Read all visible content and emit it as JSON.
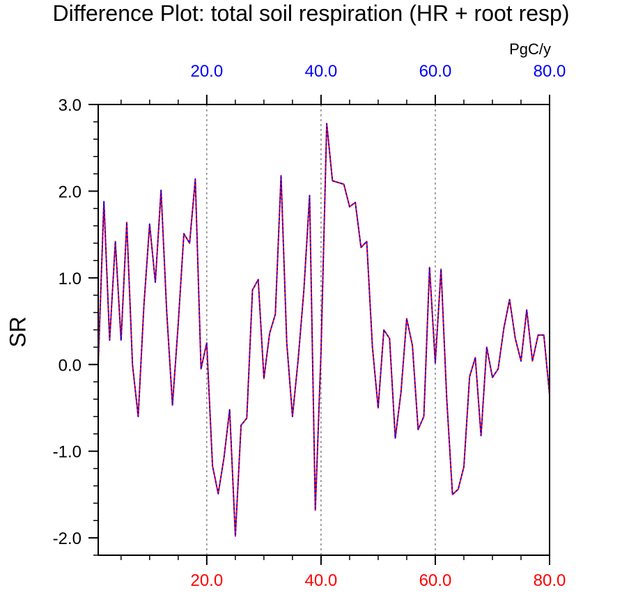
{
  "chart_data": {
    "type": "line",
    "title": "Difference Plot: total soil respiration (HR + root resp)",
    "ylabel": "SR",
    "top_axis_unit": "PgC/y",
    "xlim": [
      1,
      80
    ],
    "ylim": [
      -2.2,
      3.0
    ],
    "x_ticks": [
      "20.0",
      "40.0",
      "60.0",
      "80.0"
    ],
    "y_ticks": [
      "3.0",
      "2.0",
      "1.0",
      "0.0",
      "-1.0",
      "-2.0"
    ],
    "grid": "vertical dashed at 20, 40, 60",
    "colors": {
      "bottom_axis": "#ff0000",
      "top_axis": "#0000ff",
      "series_a": "#ff0000",
      "series_b": "#0000ff",
      "grid": "#666666"
    },
    "series": [
      {
        "style": "solid",
        "color": "#ff0000",
        "x": [
          1,
          2,
          3,
          4,
          5,
          6,
          7,
          8,
          9,
          10,
          11,
          12,
          13,
          14,
          15,
          16,
          17,
          18,
          19,
          20,
          21,
          22,
          23,
          24,
          25,
          26,
          27,
          28,
          29,
          30,
          31,
          32,
          33,
          34,
          35,
          36,
          37,
          38,
          39,
          40,
          41,
          42,
          43,
          44,
          45,
          46,
          47,
          48,
          49,
          50,
          51,
          52,
          53,
          54,
          55,
          56,
          57,
          58,
          59,
          60,
          61,
          62,
          63,
          64,
          65,
          66,
          67,
          68,
          69,
          70,
          71,
          72,
          73,
          74,
          75,
          76,
          77,
          78,
          79,
          80
        ],
        "values": [
          0.0,
          1.88,
          0.28,
          1.42,
          0.28,
          1.64,
          0.0,
          -0.6,
          0.68,
          1.62,
          0.95,
          2.01,
          0.6,
          -0.47,
          0.46,
          1.51,
          1.4,
          2.14,
          -0.05,
          0.25,
          -1.17,
          -1.49,
          -1.08,
          -0.52,
          -1.98,
          -0.7,
          -0.62,
          0.86,
          0.98,
          -0.16,
          0.36,
          0.58,
          2.18,
          0.25,
          -0.6,
          0.06,
          0.86,
          1.95,
          -1.68,
          0.15,
          2.78,
          2.12,
          2.1,
          2.08,
          1.82,
          1.87,
          1.35,
          1.42,
          0.2,
          -0.5,
          0.4,
          0.3,
          -0.85,
          -0.32,
          0.53,
          0.22,
          -0.75,
          -0.6,
          1.12,
          0.02,
          1.1,
          -0.4,
          -1.5,
          -1.44,
          -1.18,
          -0.14,
          0.08,
          -0.82,
          0.2,
          -0.15,
          -0.05,
          0.42,
          0.75,
          0.3,
          0.04,
          0.63,
          0.04,
          0.34,
          0.34,
          -0.35
        ]
      },
      {
        "style": "dashed",
        "color": "#0000ff",
        "x": [
          1,
          2,
          3,
          4,
          5,
          6,
          7,
          8,
          9,
          10,
          11,
          12,
          13,
          14,
          15,
          16,
          17,
          18,
          19,
          20,
          21,
          22,
          23,
          24,
          25,
          26,
          27,
          28,
          29,
          30,
          31,
          32,
          33,
          34,
          35,
          36,
          37,
          38,
          39,
          40,
          41,
          42,
          43,
          44,
          45,
          46,
          47,
          48,
          49,
          50,
          51,
          52,
          53,
          54,
          55,
          56,
          57,
          58,
          59,
          60,
          61,
          62,
          63,
          64,
          65,
          66,
          67,
          68,
          69,
          70,
          71,
          72,
          73,
          74,
          75,
          76,
          77,
          78,
          79,
          80
        ],
        "values": [
          0.0,
          1.88,
          0.28,
          1.42,
          0.28,
          1.64,
          0.0,
          -0.6,
          0.68,
          1.62,
          0.95,
          2.01,
          0.6,
          -0.47,
          0.46,
          1.51,
          1.4,
          2.14,
          -0.05,
          0.25,
          -1.17,
          -1.49,
          -1.08,
          -0.52,
          -1.98,
          -0.7,
          -0.62,
          0.86,
          0.98,
          -0.16,
          0.36,
          0.58,
          2.18,
          0.25,
          -0.6,
          0.06,
          0.86,
          1.95,
          -1.68,
          0.15,
          2.78,
          2.12,
          2.1,
          2.08,
          1.82,
          1.87,
          1.35,
          1.42,
          0.2,
          -0.5,
          0.4,
          0.3,
          -0.85,
          -0.32,
          0.53,
          0.22,
          -0.75,
          -0.6,
          1.12,
          0.02,
          1.1,
          -0.4,
          -1.5,
          -1.44,
          -1.18,
          -0.14,
          0.08,
          -0.82,
          0.2,
          -0.15,
          -0.05,
          0.42,
          0.75,
          0.3,
          0.04,
          0.63,
          0.04,
          0.34,
          0.34,
          -0.35
        ]
      }
    ]
  }
}
